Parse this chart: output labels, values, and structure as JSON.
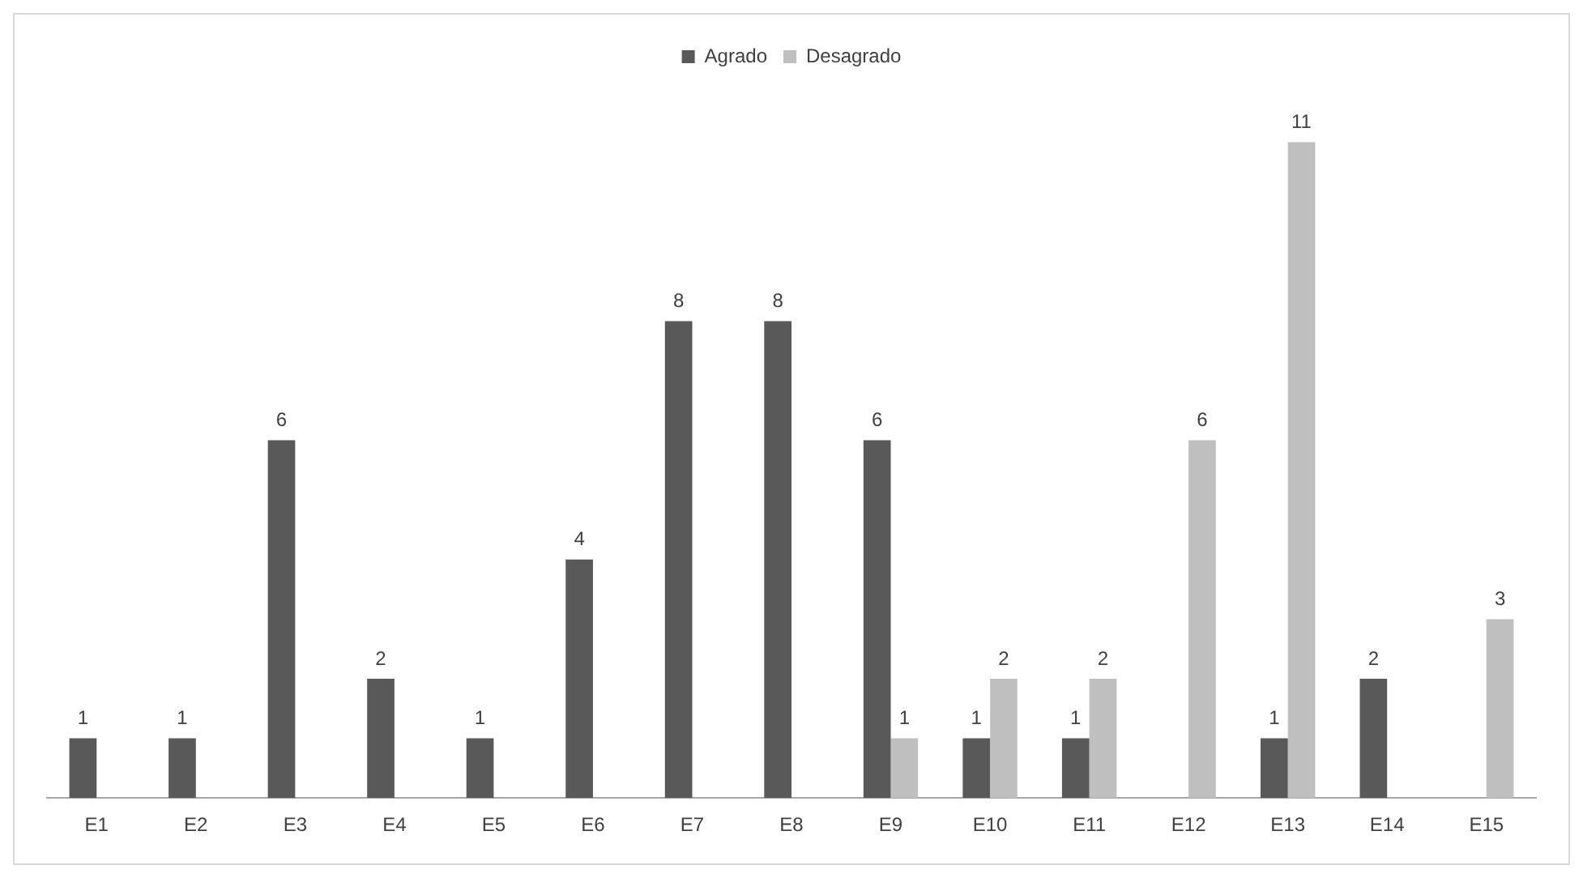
{
  "chart_data": {
    "type": "bar",
    "categories": [
      "E1",
      "E2",
      "E3",
      "E4",
      "E5",
      "E6",
      "E7",
      "E8",
      "E9",
      "E10",
      "E11",
      "E12",
      "E13",
      "E14",
      "E15"
    ],
    "series": [
      {
        "name": "Agrado",
        "color": "#595959",
        "values": [
          1,
          1,
          6,
          2,
          1,
          4,
          8,
          8,
          6,
          1,
          1,
          null,
          1,
          2,
          null
        ]
      },
      {
        "name": "Desagrado",
        "color": "#bfbfbf",
        "values": [
          null,
          null,
          null,
          null,
          null,
          null,
          null,
          null,
          1,
          2,
          2,
          6,
          11,
          null,
          3
        ]
      }
    ],
    "data_labels": true,
    "legend": "top",
    "grid": false
  }
}
